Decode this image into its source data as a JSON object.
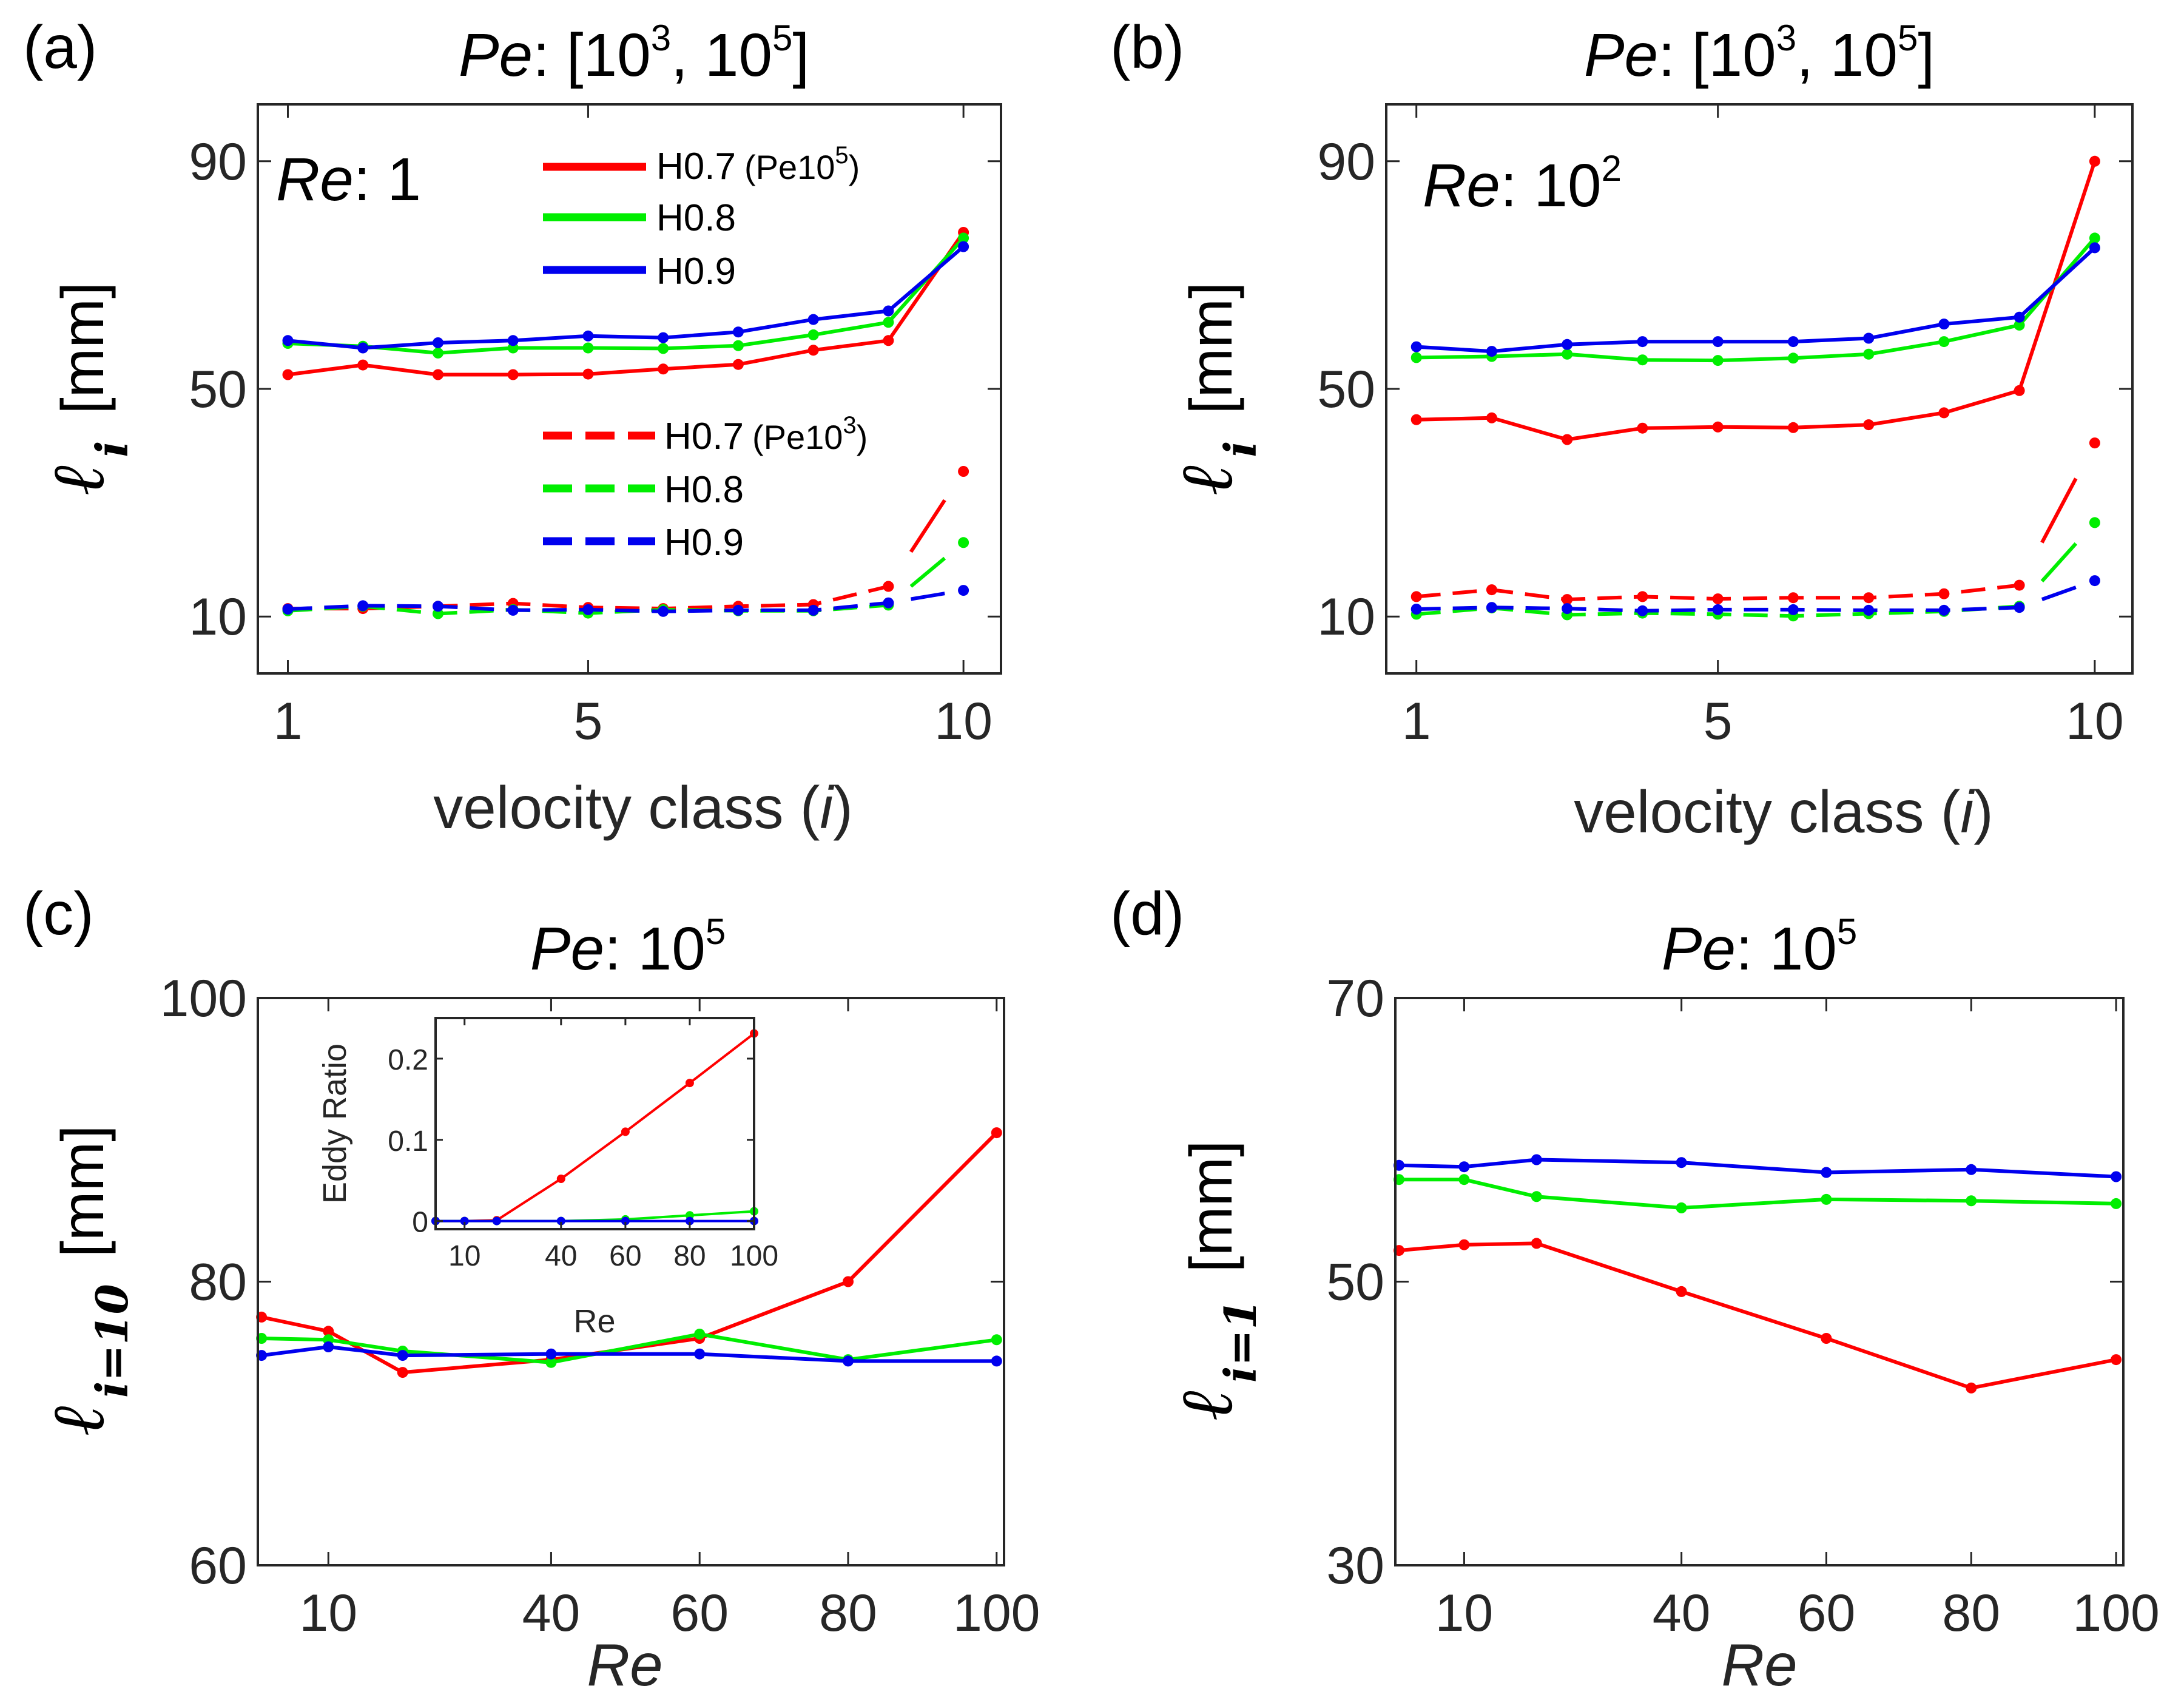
{
  "colors": {
    "h07": "#ff0000",
    "h08": "#00ee00",
    "h09": "#0000ee"
  },
  "legend": {
    "solid_header": "(Pe10",
    "solid_header_sup": "5",
    "solid_header_close": ")",
    "dashed_header": "(Pe10",
    "dashed_header_sup": "3",
    "dashed_header_close": ")",
    "labels": [
      "H0.7",
      "H0.8",
      "H0.9"
    ]
  },
  "labels": {
    "ylabel_mm": "[mm]",
    "sub_i": "i",
    "sub_i10": "i=10",
    "sub_i1": "i=1",
    "ell": "ℓ",
    "xlabel_velocity": "velocity class (",
    "xlabel_velocity_i": "i",
    "xlabel_velocity_close": ")",
    "xlabel_re": "Re",
    "inset_xlabel": "Re",
    "inset_ylabel": "Eddy Ratio"
  },
  "panels": {
    "a": {
      "letter": "(a)",
      "title_pe": "Pe",
      "title_rest": ": [10",
      "title_sup1": "3",
      "title_mid": ", 10",
      "title_sup2": "5",
      "title_end": "]",
      "ann_re": "Re",
      "ann_rest": ": 1",
      "ann_sup": ""
    },
    "b": {
      "letter": "(b)",
      "title_pe": "Pe",
      "title_rest": ": [10",
      "title_sup1": "3",
      "title_mid": ", 10",
      "title_sup2": "5",
      "title_end": "]",
      "ann_re": "Re",
      "ann_rest": ": 10",
      "ann_sup": "2"
    },
    "c": {
      "letter": "(c)",
      "title_pe": "Pe",
      "title_rest": ": 10",
      "title_sup": "5"
    },
    "d": {
      "letter": "(d)",
      "title_pe": "Pe",
      "title_rest": ": 10",
      "title_sup": "5"
    }
  },
  "chart_data": [
    {
      "id": "a",
      "type": "line",
      "title": "Pe: [10^3, 10^5]",
      "annotation": "Re: 1",
      "xlabel": "velocity class (i)",
      "ylabel": "ℓ_i [mm]",
      "xlim": [
        0.6,
        10.5
      ],
      "ylim": [
        0,
        100
      ],
      "xticks": [
        1,
        5,
        10
      ],
      "yticks": [
        10,
        50,
        90
      ],
      "x": [
        1,
        2,
        3,
        4,
        5,
        6,
        7,
        8,
        9,
        10
      ],
      "series": [
        {
          "name": "H0.7 (Pe10^5)",
          "color_key": "h07",
          "style": "solid",
          "values": [
            52.5,
            54.2,
            52.5,
            52.5,
            52.6,
            53.5,
            54.3,
            56.8,
            58.5,
            77.5
          ]
        },
        {
          "name": "H0.8 (Pe10^5)",
          "color_key": "h08",
          "style": "solid",
          "values": [
            58,
            57.5,
            56.3,
            57.2,
            57.2,
            57.1,
            57.6,
            59.5,
            61.7,
            76.5
          ]
        },
        {
          "name": "H0.9 (Pe10^5)",
          "color_key": "h09",
          "style": "solid",
          "values": [
            58.5,
            57.2,
            58.1,
            58.5,
            59.3,
            59,
            60,
            62.2,
            63.7,
            75
          ]
        },
        {
          "name": "H0.7 (Pe10^3)",
          "color_key": "h07",
          "style": "dashed",
          "values": [
            11.4,
            11.4,
            11.8,
            12.3,
            11.6,
            11.4,
            11.8,
            12.1,
            15.3,
            35.5
          ]
        },
        {
          "name": "H0.8 (Pe10^3)",
          "color_key": "h08",
          "style": "dashed",
          "values": [
            11,
            11.8,
            10.5,
            11.2,
            10.6,
            11.2,
            11,
            11,
            12,
            23
          ]
        },
        {
          "name": "H0.9 (Pe10^3)",
          "color_key": "h09",
          "style": "dashed",
          "values": [
            11.3,
            11.9,
            11.8,
            11.1,
            11.2,
            10.9,
            11.1,
            11.1,
            12.4,
            14.6
          ]
        }
      ]
    },
    {
      "id": "b",
      "type": "line",
      "title": "Pe: [10^3, 10^5]",
      "annotation": "Re: 10^2",
      "xlabel": "velocity class (i)",
      "ylabel": "ℓ_i [mm]",
      "xlim": [
        0.6,
        10.5
      ],
      "ylim": [
        0,
        100
      ],
      "xticks": [
        1,
        5,
        10
      ],
      "yticks": [
        10,
        50,
        90
      ],
      "x": [
        1,
        2,
        3,
        4,
        5,
        6,
        7,
        8,
        9,
        10
      ],
      "series": [
        {
          "name": "H0.7 (Pe10^5)",
          "color_key": "h07",
          "style": "solid",
          "values": [
            44.6,
            44.9,
            41.1,
            43.1,
            43.3,
            43.2,
            43.7,
            45.8,
            49.7,
            90
          ]
        },
        {
          "name": "H0.8 (Pe10^5)",
          "color_key": "h08",
          "style": "solid",
          "values": [
            55.5,
            55.7,
            56.1,
            55.1,
            55,
            55.4,
            56.1,
            58.3,
            61.2,
            76.5
          ]
        },
        {
          "name": "H0.9 (Pe10^5)",
          "color_key": "h09",
          "style": "solid",
          "values": [
            57.4,
            56.6,
            57.8,
            58.3,
            58.3,
            58.3,
            58.9,
            61.4,
            62.6,
            74.8
          ]
        },
        {
          "name": "H0.7 (Pe10^3)",
          "color_key": "h07",
          "style": "dashed",
          "values": [
            13.5,
            14.7,
            13,
            13.5,
            13.1,
            13.3,
            13.3,
            14,
            15.5,
            40.5
          ]
        },
        {
          "name": "H0.8 (Pe10^3)",
          "color_key": "h08",
          "style": "dashed",
          "values": [
            10.4,
            11.5,
            10.3,
            10.6,
            10.4,
            10.1,
            10.5,
            10.9,
            11.8,
            26.5
          ]
        },
        {
          "name": "H0.9 (Pe10^3)",
          "color_key": "h09",
          "style": "dashed",
          "values": [
            11.3,
            11.6,
            11.4,
            11,
            11.2,
            11.2,
            11.1,
            11.1,
            11.6,
            16.3
          ]
        }
      ]
    },
    {
      "id": "c",
      "type": "line",
      "title": "Pe: 10^5",
      "xlabel": "Re",
      "ylabel": "ℓ_i=10 [mm]",
      "xlim": [
        0.5,
        101
      ],
      "ylim": [
        60,
        100
      ],
      "xticks": [
        10,
        40,
        60,
        80,
        100
      ],
      "yticks": [
        60,
        80,
        100
      ],
      "x": [
        1,
        10,
        20,
        40,
        60,
        80,
        100
      ],
      "series": [
        {
          "name": "H0.7",
          "color_key": "h07",
          "values": [
            77.5,
            76.5,
            73.6,
            74.5,
            76,
            80,
            90.5
          ]
        },
        {
          "name": "H0.8",
          "color_key": "h08",
          "values": [
            76,
            75.9,
            75.1,
            74.3,
            76.3,
            74.5,
            75.9
          ]
        },
        {
          "name": "H0.9",
          "color_key": "h09",
          "values": [
            74.8,
            75.4,
            74.8,
            74.9,
            74.9,
            74.4,
            74.4
          ]
        }
      ],
      "inset": {
        "type": "line",
        "xlabel": "Re",
        "ylabel": "Eddy Ratio",
        "xlim": [
          1,
          100
        ],
        "ylim": [
          -0.01,
          0.25
        ],
        "xticks": [
          10,
          40,
          60,
          80,
          100
        ],
        "yticks": [
          0,
          0.1,
          0.2
        ],
        "x": [
          1,
          10,
          20,
          40,
          60,
          80,
          100
        ],
        "series": [
          {
            "name": "H0.7",
            "color_key": "h07",
            "values": [
              0,
              0,
              0.001,
              0.052,
              0.11,
              0.17,
              0.231
            ]
          },
          {
            "name": "H0.8",
            "color_key": "h08",
            "values": [
              0,
              0,
              0,
              0,
              0.002,
              0.007,
              0.012
            ]
          },
          {
            "name": "H0.9",
            "color_key": "h09",
            "values": [
              0,
              0,
              0,
              0,
              0,
              0,
              0
            ]
          }
        ]
      }
    },
    {
      "id": "d",
      "type": "line",
      "title": "Pe: 10^5",
      "xlabel": "Re",
      "ylabel": "ℓ_i=1 [mm]",
      "xlim": [
        0.5,
        101
      ],
      "ylim": [
        30,
        70
      ],
      "xticks": [
        10,
        40,
        60,
        80,
        100
      ],
      "yticks": [
        30,
        50,
        70
      ],
      "x": [
        1,
        10,
        20,
        40,
        60,
        80,
        100
      ],
      "series": [
        {
          "name": "H0.7",
          "color_key": "h07",
          "values": [
            52.2,
            52.6,
            52.7,
            49.3,
            46,
            42.5,
            44.5
          ]
        },
        {
          "name": "H0.8",
          "color_key": "h08",
          "values": [
            57.2,
            57.2,
            56,
            55.2,
            55.8,
            55.7,
            55.5
          ]
        },
        {
          "name": "H0.9",
          "color_key": "h09",
          "values": [
            58.2,
            58.1,
            58.6,
            58.4,
            57.7,
            57.9,
            57.4
          ]
        }
      ]
    }
  ]
}
